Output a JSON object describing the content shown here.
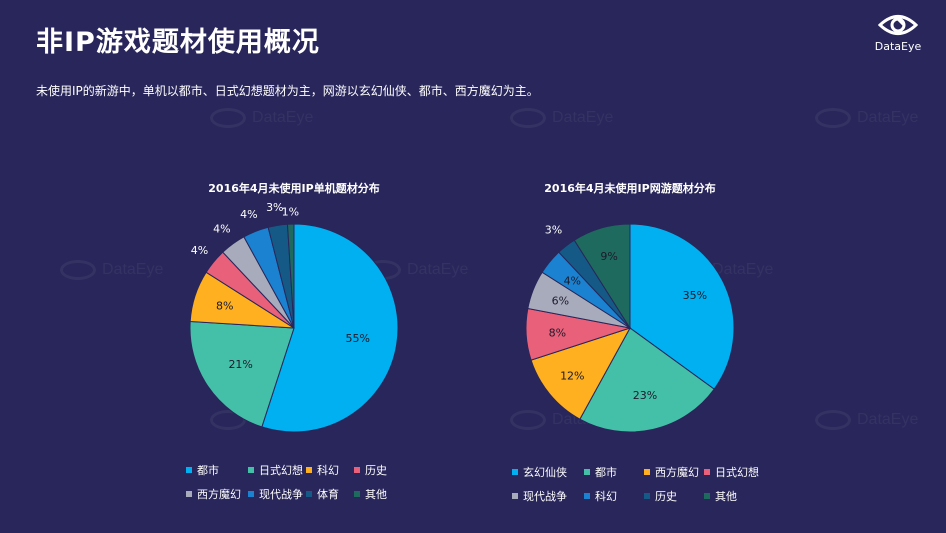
{
  "page": {
    "title": "非IP游戏题材使用概况",
    "subtitle": "未使用IP的新游中，单机以都市、日式幻想题材为主，网游以玄幻仙侠、都市、西方魔幻为主。",
    "logo_text": "DataEye",
    "watermark_text": "DataEye"
  },
  "chart_data": [
    {
      "type": "pie",
      "title": "2016年4月未使用IP单机题材分布",
      "categories": [
        "都市",
        "日式幻想",
        "科幻",
        "历史",
        "西方魔幻",
        "现代战争",
        "体育",
        "其他"
      ],
      "values": [
        55,
        21,
        8,
        4,
        4,
        4,
        3,
        1
      ],
      "labels": [
        "55%",
        "21%",
        "8%",
        "4%",
        "4%",
        "4%",
        "3%",
        "1%"
      ],
      "colors": [
        "#00b0f0",
        "#45c0a8",
        "#ffb020",
        "#e8607a",
        "#a8abbc",
        "#1a82d0",
        "#155a86",
        "#1e6a5e"
      ],
      "legend_placement": "bottom"
    },
    {
      "type": "pie",
      "title": "2016年4月未使用IP网游题材分布",
      "categories": [
        "玄幻仙侠",
        "都市",
        "西方魔幻",
        "日式幻想",
        "现代战争",
        "科幻",
        "历史",
        "其他"
      ],
      "values": [
        35,
        23,
        12,
        8,
        6,
        4,
        3,
        9
      ],
      "labels": [
        "35%",
        "23%",
        "12%",
        "8%",
        "6%",
        "4%",
        "3%",
        "9%"
      ],
      "colors": [
        "#00b0f0",
        "#45c0a8",
        "#ffb020",
        "#e8607a",
        "#a8abbc",
        "#1a82d0",
        "#155a86",
        "#1e6a5e"
      ],
      "legend_placement": "bottom"
    }
  ]
}
